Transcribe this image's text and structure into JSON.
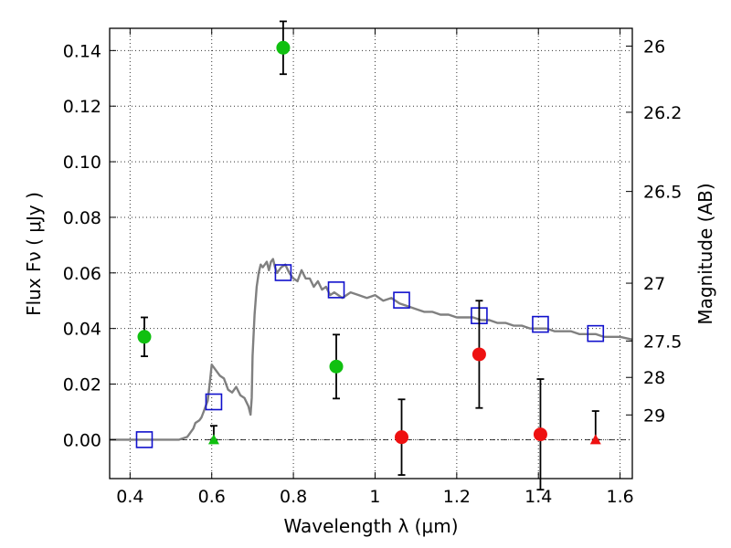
{
  "chart_data": {
    "type": "scatter",
    "xlabel": "Wavelength  λ (μm)",
    "ylabel": "Flux  Fν  ( μJy )",
    "ylabel_right": "Magnitude (AB)",
    "xlim": [
      0.35,
      1.63
    ],
    "ylim": [
      -0.014,
      0.148
    ],
    "xticks": [
      0.4,
      0.6,
      0.8,
      1.0,
      1.2,
      1.4,
      1.6
    ],
    "xtick_labels": [
      "0.4",
      "0.6",
      "0.8",
      "1",
      "1.2",
      "1.4",
      "1.6"
    ],
    "yticks": [
      0.0,
      0.02,
      0.04,
      0.06,
      0.08,
      0.1,
      0.12,
      0.14
    ],
    "ytick_labels": [
      "0.00",
      "0.02",
      "0.04",
      "0.06",
      "0.08",
      "0.10",
      "0.12",
      "0.14"
    ],
    "right_ticks": [
      {
        "label": "26",
        "flux": 0.1416
      },
      {
        "label": "26.2",
        "flux": 0.1178
      },
      {
        "label": "26.5",
        "flux": 0.0893
      },
      {
        "label": "27",
        "flux": 0.0563
      },
      {
        "label": "27.5",
        "flux": 0.0355
      },
      {
        "label": "28",
        "flux": 0.0224
      },
      {
        "label": "29",
        "flux": 0.0089
      }
    ],
    "grid": true,
    "colors": {
      "green": "#10c010",
      "red": "#ee1111",
      "model": "#808080",
      "squares": "#1010cc",
      "errorbar": "#000000"
    },
    "detections_green": [
      {
        "x": 0.435,
        "y": 0.037,
        "err": 0.007
      },
      {
        "x": 0.775,
        "y": 0.141,
        "err": 0.0095
      },
      {
        "x": 0.905,
        "y": 0.0263,
        "err": 0.0115
      }
    ],
    "upper_limits_green": [
      {
        "x": 0.605,
        "y": 0.0,
        "err_up": 0.005
      }
    ],
    "detections_red": [
      {
        "x": 1.065,
        "y": 0.0009,
        "err": 0.0136
      },
      {
        "x": 1.255,
        "y": 0.0307,
        "err": 0.0193
      },
      {
        "x": 1.405,
        "y": 0.0019,
        "err": 0.0199
      }
    ],
    "upper_limits_red": [
      {
        "x": 1.54,
        "y": 0.0,
        "err_up": 0.0103
      }
    ],
    "model_photometry": [
      {
        "x": 0.435,
        "y": 0.0
      },
      {
        "x": 0.605,
        "y": 0.0136
      },
      {
        "x": 0.775,
        "y": 0.0601
      },
      {
        "x": 0.905,
        "y": 0.0539
      },
      {
        "x": 1.065,
        "y": 0.0502
      },
      {
        "x": 1.255,
        "y": 0.0446
      },
      {
        "x": 1.405,
        "y": 0.0415
      },
      {
        "x": 1.54,
        "y": 0.0382
      }
    ],
    "model_spectrum": {
      "x": [
        0.35,
        0.4,
        0.45,
        0.5,
        0.52,
        0.54,
        0.555,
        0.56,
        0.57,
        0.575,
        0.58,
        0.585,
        0.59,
        0.595,
        0.6,
        0.61,
        0.62,
        0.63,
        0.64,
        0.65,
        0.66,
        0.67,
        0.68,
        0.69,
        0.695,
        0.698,
        0.7,
        0.705,
        0.71,
        0.715,
        0.72,
        0.725,
        0.73,
        0.735,
        0.74,
        0.745,
        0.75,
        0.755,
        0.76,
        0.77,
        0.78,
        0.79,
        0.8,
        0.81,
        0.82,
        0.83,
        0.84,
        0.85,
        0.86,
        0.87,
        0.88,
        0.89,
        0.9,
        0.92,
        0.94,
        0.96,
        0.98,
        1.0,
        1.02,
        1.04,
        1.06,
        1.08,
        1.1,
        1.12,
        1.14,
        1.16,
        1.18,
        1.2,
        1.22,
        1.24,
        1.26,
        1.28,
        1.3,
        1.32,
        1.34,
        1.36,
        1.38,
        1.4,
        1.42,
        1.44,
        1.46,
        1.48,
        1.5,
        1.52,
        1.54,
        1.56,
        1.58,
        1.6,
        1.63
      ],
      "y": [
        0.0,
        0.0,
        0.0,
        0.0,
        0.0,
        0.001,
        0.004,
        0.006,
        0.007,
        0.008,
        0.01,
        0.012,
        0.014,
        0.02,
        0.027,
        0.025,
        0.023,
        0.022,
        0.018,
        0.017,
        0.019,
        0.016,
        0.015,
        0.012,
        0.009,
        0.015,
        0.03,
        0.045,
        0.055,
        0.06,
        0.063,
        0.062,
        0.063,
        0.064,
        0.061,
        0.064,
        0.065,
        0.062,
        0.06,
        0.062,
        0.063,
        0.06,
        0.058,
        0.057,
        0.061,
        0.058,
        0.058,
        0.055,
        0.057,
        0.054,
        0.055,
        0.052,
        0.053,
        0.051,
        0.053,
        0.052,
        0.051,
        0.052,
        0.05,
        0.051,
        0.049,
        0.048,
        0.047,
        0.046,
        0.046,
        0.045,
        0.045,
        0.044,
        0.044,
        0.044,
        0.043,
        0.043,
        0.042,
        0.042,
        0.041,
        0.041,
        0.04,
        0.04,
        0.04,
        0.039,
        0.039,
        0.039,
        0.038,
        0.038,
        0.038,
        0.037,
        0.037,
        0.037,
        0.036
      ]
    }
  }
}
